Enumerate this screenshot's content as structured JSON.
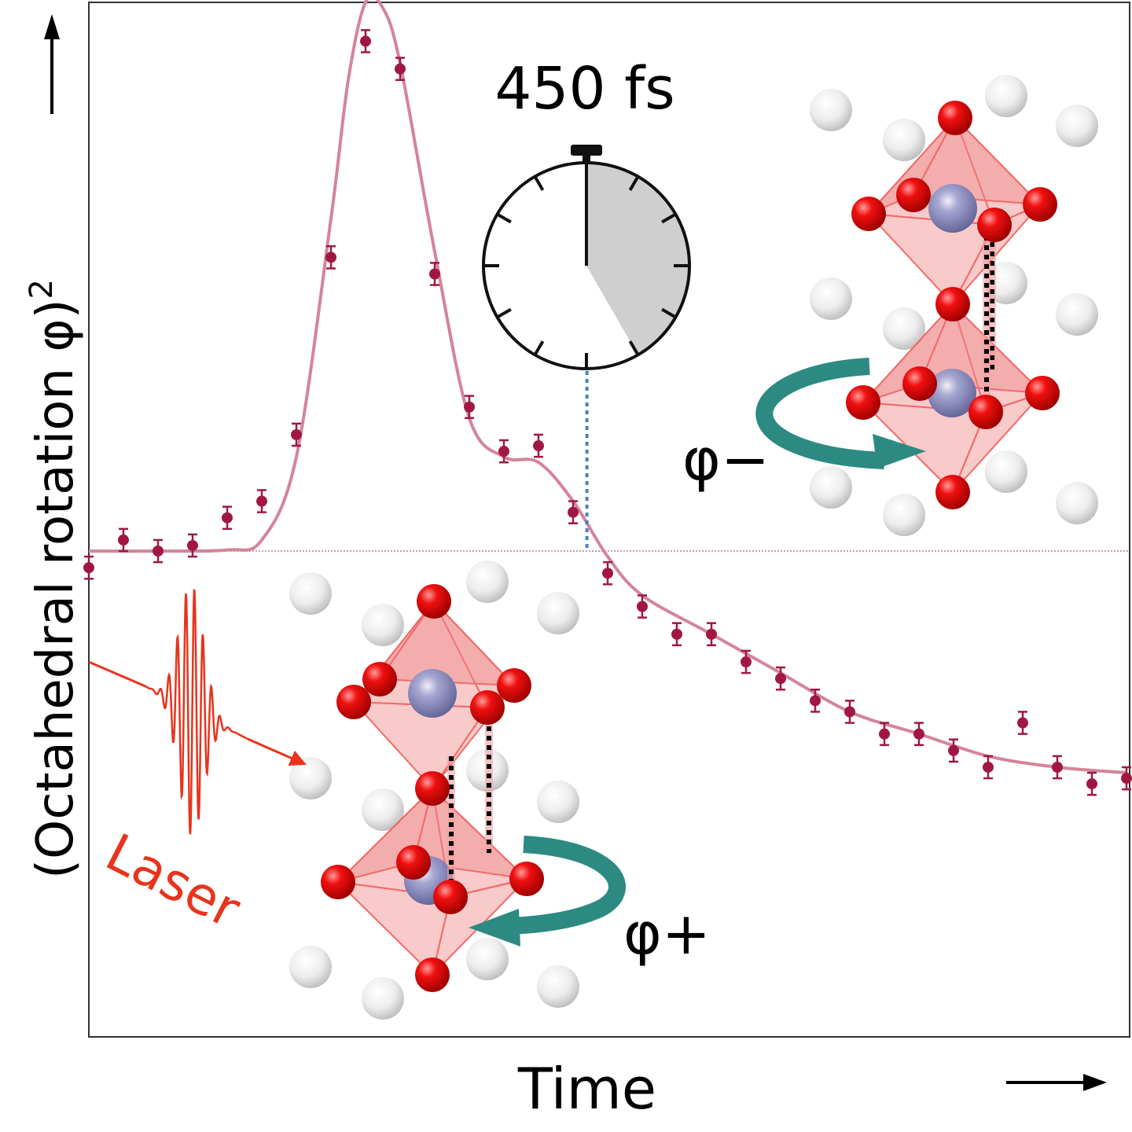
{
  "chart_data": {
    "type": "scatter",
    "xlabel": "Time",
    "ylabel_main": "(Octahedral rotation φ)",
    "ylabel_exp": "2",
    "xlim": [
      0,
      30
    ],
    "ylim": [
      -1,
      1
    ],
    "grid": false,
    "baseline_y": 0,
    "series": [
      {
        "x": [
          0,
          1,
          2,
          3,
          4,
          5,
          6,
          7,
          8,
          9,
          10,
          11,
          12,
          13,
          14,
          15,
          16,
          17,
          18,
          19,
          20,
          21,
          22,
          23,
          24,
          25,
          26,
          27,
          28,
          29,
          30
        ],
        "y": [
          -0.03,
          0.02,
          0.0,
          0.01,
          0.06,
          0.09,
          0.21,
          0.53,
          0.92,
          0.87,
          0.5,
          0.26,
          0.18,
          0.19,
          0.07,
          -0.04,
          -0.1,
          -0.15,
          -0.15,
          -0.2,
          -0.23,
          -0.27,
          -0.29,
          -0.33,
          -0.33,
          -0.36,
          -0.39,
          -0.31,
          -0.39,
          -0.42,
          -0.41
        ],
        "err": 0.02
      }
    ],
    "fit": {
      "x": [
        0,
        2,
        4,
        5,
        6,
        7,
        7.5,
        8,
        8.5,
        9,
        10,
        11,
        12,
        13,
        14,
        15,
        16,
        18,
        20,
        22,
        24,
        26,
        28,
        30
      ],
      "y": [
        0,
        0,
        0.002,
        0.02,
        0.17,
        0.6,
        0.85,
        0.99,
        0.98,
        0.88,
        0.54,
        0.24,
        0.17,
        0.16,
        0.09,
        -0.01,
        -0.08,
        -0.15,
        -0.22,
        -0.29,
        -0.33,
        -0.37,
        -0.39,
        -0.4
      ]
    },
    "annotations": {
      "time_mark": "450 fs",
      "time_mark_x": 14.4,
      "phi_minus": "φ−",
      "phi_plus": "φ+",
      "laser": "Laser"
    },
    "colors": {
      "points": "#a01841",
      "fit": "#d4849a",
      "baseline": "#c07a8c",
      "marker_line": "#4f7ebb",
      "laser": "#e8341c",
      "arrow": "#2c8a82",
      "oxygen": "#e60f0f",
      "cation": "#8e8fc0",
      "octahedron": "#f08a8a",
      "atom_white": "#e6e6e6"
    }
  }
}
